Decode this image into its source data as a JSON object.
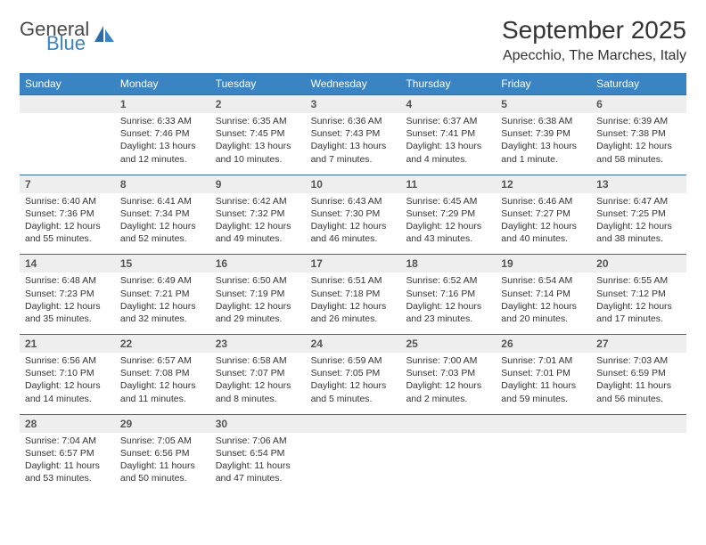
{
  "brand": {
    "main": "General",
    "sub": "Blue"
  },
  "title": "September 2025",
  "location": "Apecchio, The Marches, Italy",
  "colors": {
    "header_bg": "#3a84c4",
    "header_text": "#ffffff",
    "daynum_bg": "#eeeeee",
    "row_border": "#3a6a9a",
    "text": "#333333",
    "logo_sub": "#3a84c4"
  },
  "typography": {
    "title_fontsize": 28,
    "subtitle_fontsize": 16,
    "header_fontsize": 12,
    "daynum_fontsize": 12,
    "body_fontsize": 10.5
  },
  "weekdays": [
    "Sunday",
    "Monday",
    "Tuesday",
    "Wednesday",
    "Thursday",
    "Friday",
    "Saturday"
  ],
  "weeks": [
    {
      "nums": [
        "",
        "1",
        "2",
        "3",
        "4",
        "5",
        "6"
      ],
      "cells": [
        null,
        {
          "sunrise": "Sunrise: 6:33 AM",
          "sunset": "Sunset: 7:46 PM",
          "daylight": "Daylight: 13 hours and 12 minutes."
        },
        {
          "sunrise": "Sunrise: 6:35 AM",
          "sunset": "Sunset: 7:45 PM",
          "daylight": "Daylight: 13 hours and 10 minutes."
        },
        {
          "sunrise": "Sunrise: 6:36 AM",
          "sunset": "Sunset: 7:43 PM",
          "daylight": "Daylight: 13 hours and 7 minutes."
        },
        {
          "sunrise": "Sunrise: 6:37 AM",
          "sunset": "Sunset: 7:41 PM",
          "daylight": "Daylight: 13 hours and 4 minutes."
        },
        {
          "sunrise": "Sunrise: 6:38 AM",
          "sunset": "Sunset: 7:39 PM",
          "daylight": "Daylight: 13 hours and 1 minute."
        },
        {
          "sunrise": "Sunrise: 6:39 AM",
          "sunset": "Sunset: 7:38 PM",
          "daylight": "Daylight: 12 hours and 58 minutes."
        }
      ]
    },
    {
      "nums": [
        "7",
        "8",
        "9",
        "10",
        "11",
        "12",
        "13"
      ],
      "cells": [
        {
          "sunrise": "Sunrise: 6:40 AM",
          "sunset": "Sunset: 7:36 PM",
          "daylight": "Daylight: 12 hours and 55 minutes."
        },
        {
          "sunrise": "Sunrise: 6:41 AM",
          "sunset": "Sunset: 7:34 PM",
          "daylight": "Daylight: 12 hours and 52 minutes."
        },
        {
          "sunrise": "Sunrise: 6:42 AM",
          "sunset": "Sunset: 7:32 PM",
          "daylight": "Daylight: 12 hours and 49 minutes."
        },
        {
          "sunrise": "Sunrise: 6:43 AM",
          "sunset": "Sunset: 7:30 PM",
          "daylight": "Daylight: 12 hours and 46 minutes."
        },
        {
          "sunrise": "Sunrise: 6:45 AM",
          "sunset": "Sunset: 7:29 PM",
          "daylight": "Daylight: 12 hours and 43 minutes."
        },
        {
          "sunrise": "Sunrise: 6:46 AM",
          "sunset": "Sunset: 7:27 PM",
          "daylight": "Daylight: 12 hours and 40 minutes."
        },
        {
          "sunrise": "Sunrise: 6:47 AM",
          "sunset": "Sunset: 7:25 PM",
          "daylight": "Daylight: 12 hours and 38 minutes."
        }
      ]
    },
    {
      "nums": [
        "14",
        "15",
        "16",
        "17",
        "18",
        "19",
        "20"
      ],
      "cells": [
        {
          "sunrise": "Sunrise: 6:48 AM",
          "sunset": "Sunset: 7:23 PM",
          "daylight": "Daylight: 12 hours and 35 minutes."
        },
        {
          "sunrise": "Sunrise: 6:49 AM",
          "sunset": "Sunset: 7:21 PM",
          "daylight": "Daylight: 12 hours and 32 minutes."
        },
        {
          "sunrise": "Sunrise: 6:50 AM",
          "sunset": "Sunset: 7:19 PM",
          "daylight": "Daylight: 12 hours and 29 minutes."
        },
        {
          "sunrise": "Sunrise: 6:51 AM",
          "sunset": "Sunset: 7:18 PM",
          "daylight": "Daylight: 12 hours and 26 minutes."
        },
        {
          "sunrise": "Sunrise: 6:52 AM",
          "sunset": "Sunset: 7:16 PM",
          "daylight": "Daylight: 12 hours and 23 minutes."
        },
        {
          "sunrise": "Sunrise: 6:54 AM",
          "sunset": "Sunset: 7:14 PM",
          "daylight": "Daylight: 12 hours and 20 minutes."
        },
        {
          "sunrise": "Sunrise: 6:55 AM",
          "sunset": "Sunset: 7:12 PM",
          "daylight": "Daylight: 12 hours and 17 minutes."
        }
      ]
    },
    {
      "nums": [
        "21",
        "22",
        "23",
        "24",
        "25",
        "26",
        "27"
      ],
      "cells": [
        {
          "sunrise": "Sunrise: 6:56 AM",
          "sunset": "Sunset: 7:10 PM",
          "daylight": "Daylight: 12 hours and 14 minutes."
        },
        {
          "sunrise": "Sunrise: 6:57 AM",
          "sunset": "Sunset: 7:08 PM",
          "daylight": "Daylight: 12 hours and 11 minutes."
        },
        {
          "sunrise": "Sunrise: 6:58 AM",
          "sunset": "Sunset: 7:07 PM",
          "daylight": "Daylight: 12 hours and 8 minutes."
        },
        {
          "sunrise": "Sunrise: 6:59 AM",
          "sunset": "Sunset: 7:05 PM",
          "daylight": "Daylight: 12 hours and 5 minutes."
        },
        {
          "sunrise": "Sunrise: 7:00 AM",
          "sunset": "Sunset: 7:03 PM",
          "daylight": "Daylight: 12 hours and 2 minutes."
        },
        {
          "sunrise": "Sunrise: 7:01 AM",
          "sunset": "Sunset: 7:01 PM",
          "daylight": "Daylight: 11 hours and 59 minutes."
        },
        {
          "sunrise": "Sunrise: 7:03 AM",
          "sunset": "Sunset: 6:59 PM",
          "daylight": "Daylight: 11 hours and 56 minutes."
        }
      ]
    },
    {
      "nums": [
        "28",
        "29",
        "30",
        "",
        "",
        "",
        ""
      ],
      "cells": [
        {
          "sunrise": "Sunrise: 7:04 AM",
          "sunset": "Sunset: 6:57 PM",
          "daylight": "Daylight: 11 hours and 53 minutes."
        },
        {
          "sunrise": "Sunrise: 7:05 AM",
          "sunset": "Sunset: 6:56 PM",
          "daylight": "Daylight: 11 hours and 50 minutes."
        },
        {
          "sunrise": "Sunrise: 7:06 AM",
          "sunset": "Sunset: 6:54 PM",
          "daylight": "Daylight: 11 hours and 47 minutes."
        },
        null,
        null,
        null,
        null
      ]
    }
  ]
}
